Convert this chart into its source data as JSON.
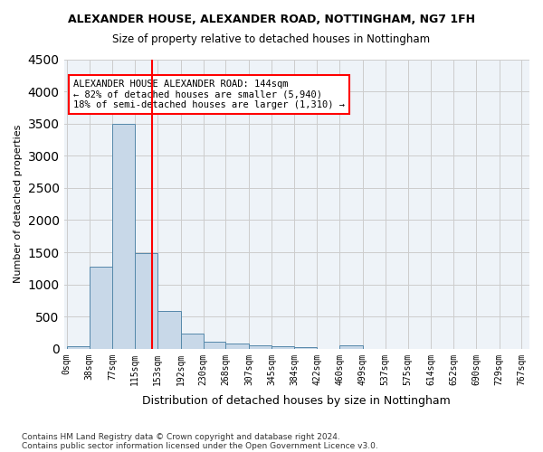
{
  "title": "ALEXANDER HOUSE, ALEXANDER ROAD, NOTTINGHAM, NG7 1FH",
  "subtitle": "Size of property relative to detached houses in Nottingham",
  "xlabel": "Distribution of detached houses by size in Nottingham",
  "ylabel": "Number of detached properties",
  "footnote1": "Contains HM Land Registry data © Crown copyright and database right 2024.",
  "footnote2": "Contains public sector information licensed under the Open Government Licence v3.0.",
  "bin_labels": [
    "0sqm",
    "38sqm",
    "77sqm",
    "115sqm",
    "153sqm",
    "192sqm",
    "230sqm",
    "268sqm",
    "307sqm",
    "345sqm",
    "384sqm",
    "422sqm",
    "460sqm",
    "499sqm",
    "537sqm",
    "575sqm",
    "614sqm",
    "652sqm",
    "690sqm",
    "729sqm",
    "767sqm"
  ],
  "bar_values": [
    40,
    1270,
    3500,
    1480,
    580,
    240,
    115,
    85,
    55,
    40,
    30,
    0,
    55,
    0,
    0,
    0,
    0,
    0,
    0,
    0,
    0
  ],
  "bar_color": "#c8d8e8",
  "bar_edge_color": "#5588aa",
  "grid_color": "#cccccc",
  "bg_color": "#eef3f8",
  "vline_x": 144,
  "vline_color": "red",
  "annotation_title": "ALEXANDER HOUSE ALEXANDER ROAD: 144sqm",
  "annotation_line2": "← 82% of detached houses are smaller (5,940)",
  "annotation_line3": "18% of semi-detached houses are larger (1,310) →",
  "annotation_box_color": "red",
  "ylim": [
    0,
    4500
  ],
  "bin_edges": [
    0,
    38,
    77,
    115,
    153,
    192,
    230,
    268,
    307,
    345,
    384,
    422,
    460,
    499,
    537,
    575,
    614,
    652,
    690,
    729,
    767
  ]
}
